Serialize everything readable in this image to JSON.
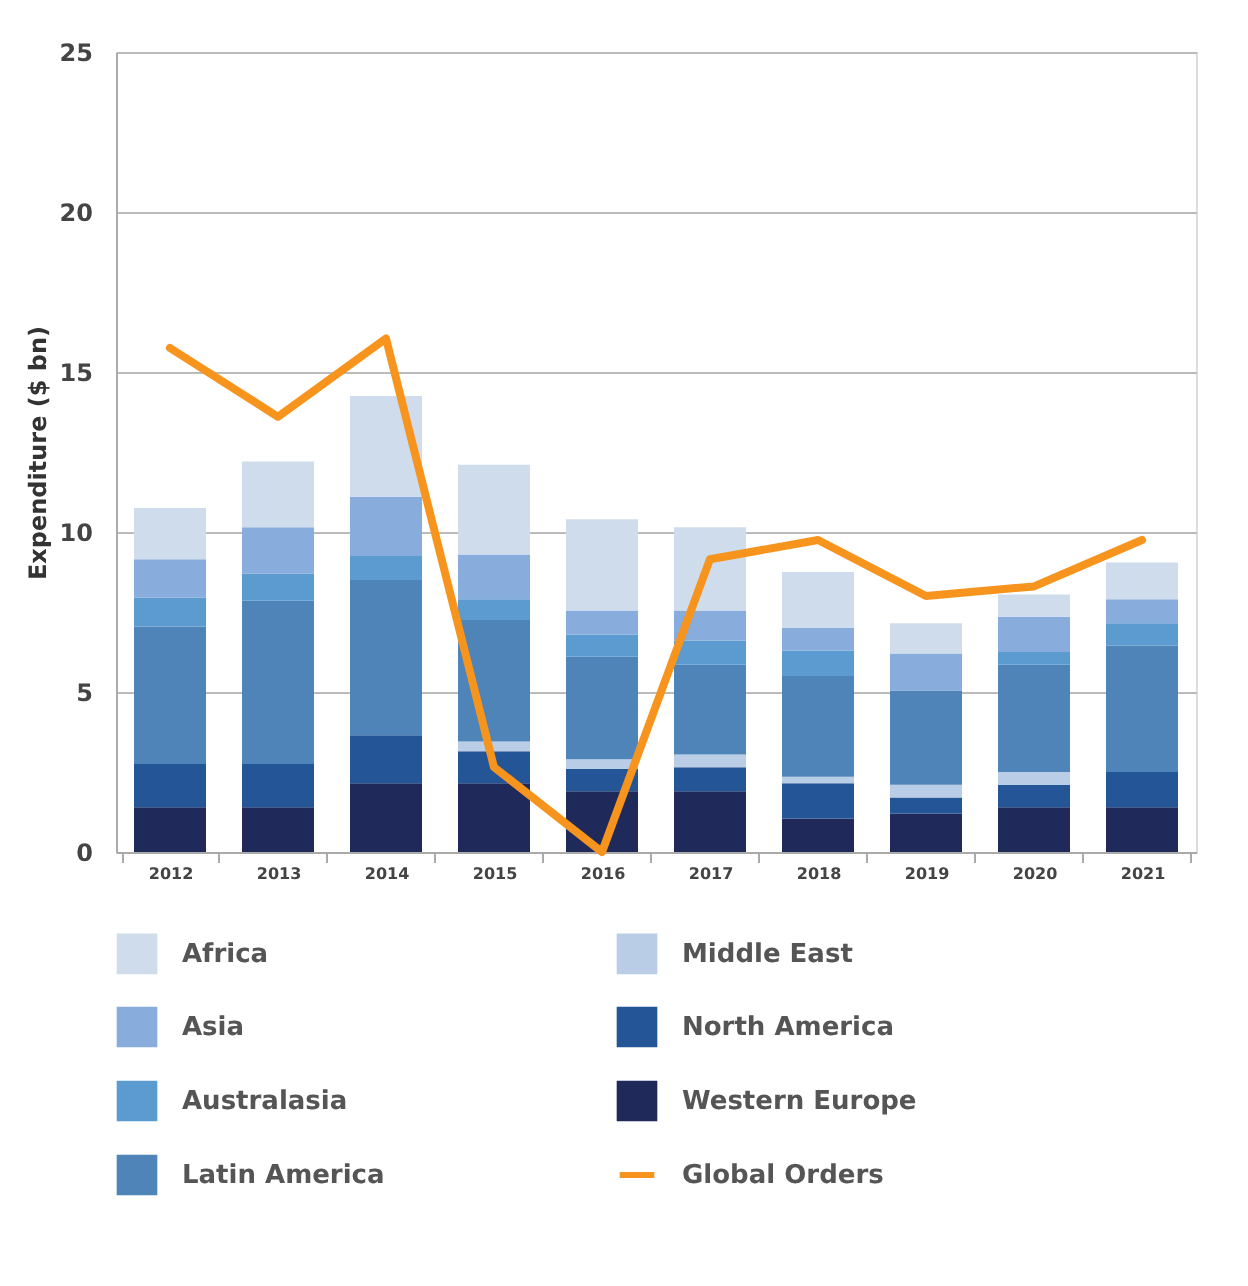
{
  "chart_data": {
    "type": "bar",
    "stacked": true,
    "ylabel": "Expenditure ($ bn)",
    "categories": [
      "2012",
      "2013",
      "2014",
      "2015",
      "2016",
      "2017",
      "2018",
      "2019",
      "2020",
      "2021"
    ],
    "series": [
      {
        "name": "Western Europe",
        "color": "#1f2a5a",
        "values": [
          1.4,
          1.4,
          2.15,
          2.15,
          1.9,
          1.9,
          1.05,
          1.2,
          1.4,
          1.4
        ]
      },
      {
        "name": "North America",
        "color": "#245597",
        "values": [
          1.35,
          1.35,
          1.5,
          1.0,
          0.7,
          0.75,
          1.1,
          0.5,
          0.7,
          1.1
        ]
      },
      {
        "name": "Middle East",
        "color": "#b9cde6",
        "values": [
          0,
          0,
          0,
          0.3,
          0.3,
          0.4,
          0.2,
          0.4,
          0.4,
          0
        ]
      },
      {
        "name": "Latin America",
        "color": "#4e84b8",
        "values": [
          4.3,
          5.1,
          4.85,
          3.8,
          3.2,
          2.8,
          3.15,
          2.95,
          3.35,
          3.95
        ]
      },
      {
        "name": "Australasia",
        "color": "#5b9bd0",
        "values": [
          0.9,
          0.85,
          0.75,
          0.65,
          0.7,
          0.75,
          0.8,
          0,
          0.4,
          0.7
        ]
      },
      {
        "name": "Asia",
        "color": "#88acdb",
        "values": [
          1.2,
          1.45,
          1.85,
          1.4,
          0.75,
          0.95,
          0.7,
          1.15,
          1.1,
          0.75
        ]
      },
      {
        "name": "Africa",
        "color": "#cfdcec",
        "values": [
          1.6,
          2.05,
          3.15,
          2.8,
          2.85,
          2.6,
          1.75,
          0.95,
          0.7,
          1.15
        ]
      },
      {
        "name": "Global Orders",
        "type": "line",
        "color": "#f7941d",
        "values": [
          15.75,
          13.6,
          16.05,
          2.65,
          0,
          9.15,
          9.75,
          8.0,
          8.3,
          9.75
        ]
      }
    ],
    "ylim": [
      0,
      25
    ],
    "yticks": [
      0,
      5,
      10,
      15,
      20,
      25
    ],
    "grid": "y",
    "legend": "bottom"
  }
}
